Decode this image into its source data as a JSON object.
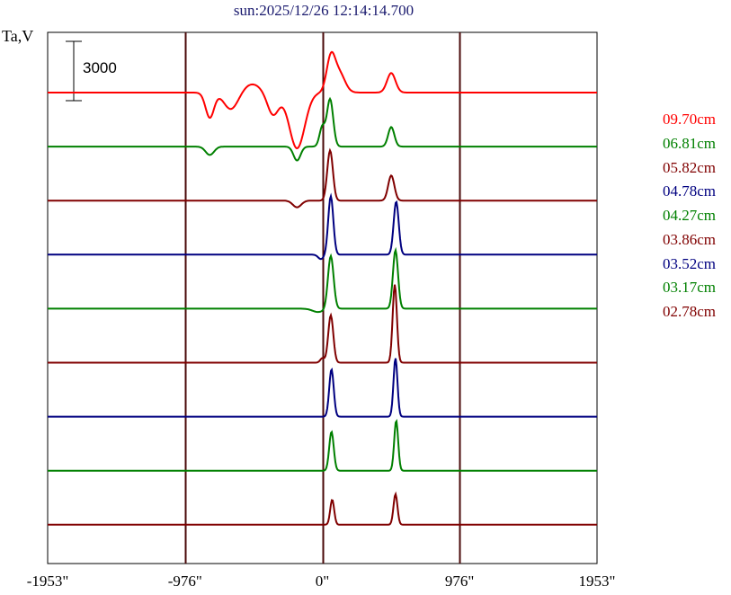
{
  "chart_data": {
    "type": "line",
    "title": "sun:2025/12/26 12:14:14.700",
    "ylabel": "Ta,V",
    "scale_bar": {
      "label": "3000",
      "value": 3000
    },
    "x_ticks": [
      {
        "value": -1953,
        "label": "-1953\""
      },
      {
        "value": -976,
        "label": "-976\""
      },
      {
        "value": 0,
        "label": "0\""
      },
      {
        "value": 976,
        "label": "976\""
      },
      {
        "value": 1953,
        "label": "1953\""
      }
    ],
    "xlim": [
      -1953,
      1953
    ],
    "vertical_lines": [
      -976,
      0,
      976
    ],
    "series": [
      {
        "name": "09.70cm",
        "color": "#ff0000",
        "shape": "red"
      },
      {
        "name": "06.81cm",
        "color": "#008000",
        "shape": "green1"
      },
      {
        "name": "05.82cm",
        "color": "#800000",
        "shape": "maroon1"
      },
      {
        "name": "04.78cm",
        "color": "#000080",
        "shape": "navy1"
      },
      {
        "name": "04.27cm",
        "color": "#008000",
        "shape": "green2"
      },
      {
        "name": "03.86cm",
        "color": "#800000",
        "shape": "maroon2"
      },
      {
        "name": "03.52cm",
        "color": "#000080",
        "shape": "navy2"
      },
      {
        "name": "03.17cm",
        "color": "#008000",
        "shape": "green3"
      },
      {
        "name": "02.78cm",
        "color": "#800000",
        "shape": "maroon3"
      }
    ]
  }
}
